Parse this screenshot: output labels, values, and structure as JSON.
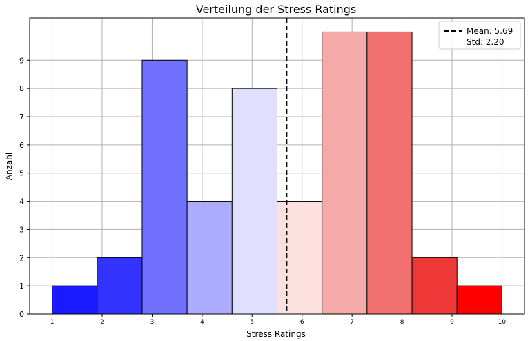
{
  "chart_data": {
    "type": "bar",
    "title": "Verteilung der Stress Ratings",
    "xlabel": "Stress Ratings",
    "ylabel": "Anzahl",
    "xlim": [
      0.55,
      10.45
    ],
    "ylim": [
      0,
      10.5
    ],
    "x_ticks": [
      "1",
      "2",
      "3",
      "4",
      "5",
      "6",
      "7",
      "8",
      "9",
      "10"
    ],
    "y_ticks": [
      "0",
      "1",
      "2",
      "3",
      "4",
      "5",
      "6",
      "7",
      "8",
      "9"
    ],
    "bins": [
      {
        "start": 1.0,
        "end": 1.9,
        "count": 1,
        "color": "#1a1aff"
      },
      {
        "start": 1.9,
        "end": 2.8,
        "count": 2,
        "color": "#3333ff"
      },
      {
        "start": 2.8,
        "end": 3.7,
        "count": 9,
        "color": "#7070ff"
      },
      {
        "start": 3.7,
        "end": 4.6,
        "count": 4,
        "color": "#acacff"
      },
      {
        "start": 4.6,
        "end": 5.5,
        "count": 8,
        "color": "#e0e0fe"
      },
      {
        "start": 5.5,
        "end": 6.4,
        "count": 4,
        "color": "#fcdfdf"
      },
      {
        "start": 6.4,
        "end": 7.3,
        "count": 10,
        "color": "#f5aaaa"
      },
      {
        "start": 7.3,
        "end": 8.2,
        "count": 10,
        "color": "#f17070"
      },
      {
        "start": 8.2,
        "end": 9.1,
        "count": 2,
        "color": "#ee3838"
      },
      {
        "start": 9.1,
        "end": 10.0,
        "count": 1,
        "color": "#ff0000"
      }
    ],
    "mean": 5.69,
    "std": 2.2,
    "grid": true,
    "legend": {
      "placement": "top-right",
      "entries": [
        "Mean: 5.69",
        "Std: 2.20"
      ]
    }
  }
}
